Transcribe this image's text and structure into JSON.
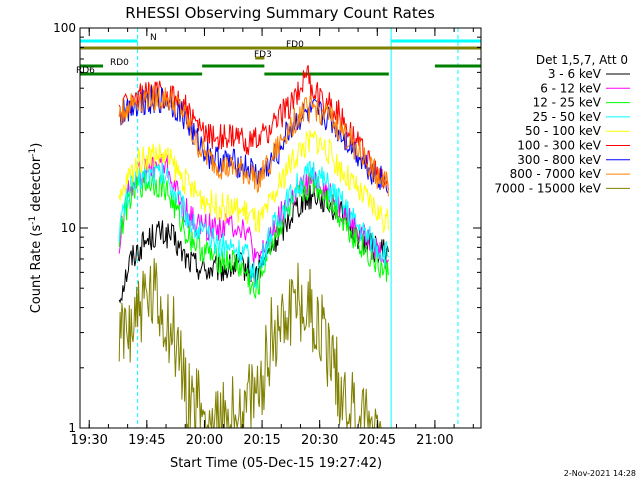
{
  "chart_data": {
    "type": "line",
    "title": "RHESSI Observing Summary Count Rates",
    "xlabel": "Start Time (05-Dec-15 19:27:42)",
    "ylabel": "Count Rate (s⁻¹ detector⁻¹)",
    "ylabel_parts": {
      "main": "Count Rate (s",
      "sup1": "-1",
      "mid": " detector",
      "sup2": "-1",
      "end": ")"
    },
    "y_scale": "log",
    "ylim": [
      1,
      100
    ],
    "y_ticks": [
      1,
      10,
      100
    ],
    "x_ticks": [
      "19:30",
      "19:45",
      "20:00",
      "20:15",
      "20:30",
      "20:45",
      "21:00"
    ],
    "xlim_hours": [
      19.46,
      21.2
    ],
    "legend_title": "Det 1,5,7, Att 0",
    "timestamp": "2-Nov-2021 14:28",
    "series": [
      {
        "name": "3 - 6 keV",
        "color": "#000000",
        "points": [
          [
            19.63,
            4.5
          ],
          [
            19.68,
            7.0
          ],
          [
            19.74,
            8.5
          ],
          [
            19.8,
            9.5
          ],
          [
            19.86,
            9.0
          ],
          [
            19.92,
            7.0
          ],
          [
            20.0,
            6.2
          ],
          [
            20.08,
            6.2
          ],
          [
            20.16,
            6.5
          ],
          [
            20.22,
            5.8
          ],
          [
            20.28,
            7.5
          ],
          [
            20.34,
            10.0
          ],
          [
            20.4,
            13.0
          ],
          [
            20.48,
            15.0
          ],
          [
            20.53,
            13.5
          ],
          [
            20.6,
            11.5
          ],
          [
            20.67,
            9.0
          ],
          [
            20.73,
            8.0
          ],
          [
            20.78,
            7.5
          ],
          [
            20.8,
            7.5
          ]
        ]
      },
      {
        "name": "6 - 12 keV",
        "color": "#ff00ff",
        "points": [
          [
            19.63,
            8.0
          ],
          [
            19.66,
            14.0
          ],
          [
            19.7,
            18.0
          ],
          [
            19.74,
            19.0
          ],
          [
            19.8,
            21.0
          ],
          [
            19.84,
            20.0
          ],
          [
            19.9,
            13.0
          ],
          [
            19.96,
            10.5
          ],
          [
            20.04,
            10.0
          ],
          [
            20.12,
            10.5
          ],
          [
            20.18,
            10.0
          ],
          [
            20.23,
            6.5
          ],
          [
            20.28,
            9.0
          ],
          [
            20.34,
            12.0
          ],
          [
            20.4,
            15.0
          ],
          [
            20.48,
            17.5
          ],
          [
            20.54,
            15.0
          ],
          [
            20.6,
            12.0
          ],
          [
            20.67,
            9.5
          ],
          [
            20.73,
            8.0
          ],
          [
            20.8,
            7.0
          ]
        ]
      },
      {
        "name": "12 - 25 keV",
        "color": "#00ff00",
        "points": [
          [
            19.63,
            9.0
          ],
          [
            19.67,
            14.0
          ],
          [
            19.72,
            16.5
          ],
          [
            19.77,
            17.0
          ],
          [
            19.83,
            16.0
          ],
          [
            19.88,
            12.0
          ],
          [
            19.92,
            9.5
          ],
          [
            19.98,
            8.0
          ],
          [
            20.05,
            7.0
          ],
          [
            20.12,
            6.8
          ],
          [
            20.18,
            6.0
          ],
          [
            20.22,
            4.5
          ],
          [
            20.28,
            8.0
          ],
          [
            20.34,
            11.0
          ],
          [
            20.4,
            14.0
          ],
          [
            20.47,
            17.0
          ],
          [
            20.53,
            14.5
          ],
          [
            20.6,
            11.0
          ],
          [
            20.67,
            8.5
          ],
          [
            20.73,
            7.0
          ],
          [
            20.78,
            6.0
          ],
          [
            20.8,
            6.0
          ]
        ]
      },
      {
        "name": "25 - 50 keV",
        "color": "#00ffff",
        "points": [
          [
            19.63,
            10.0
          ],
          [
            19.67,
            15.0
          ],
          [
            19.72,
            18.0
          ],
          [
            19.78,
            19.0
          ],
          [
            19.84,
            18.0
          ],
          [
            19.9,
            13.0
          ],
          [
            19.96,
            10.0
          ],
          [
            20.04,
            8.5
          ],
          [
            20.12,
            8.0
          ],
          [
            20.18,
            7.5
          ],
          [
            20.22,
            5.5
          ],
          [
            20.28,
            9.0
          ],
          [
            20.34,
            12.5
          ],
          [
            20.4,
            16.0
          ],
          [
            20.47,
            19.5
          ],
          [
            20.53,
            16.5
          ],
          [
            20.6,
            13.0
          ],
          [
            20.67,
            10.0
          ],
          [
            20.73,
            8.5
          ],
          [
            20.78,
            7.5
          ],
          [
            20.8,
            7.5
          ]
        ]
      },
      {
        "name": "50 - 100 keV",
        "color": "#ffff00",
        "points": [
          [
            19.63,
            13.0
          ],
          [
            19.67,
            18.0
          ],
          [
            19.72,
            22.0
          ],
          [
            19.78,
            23.5
          ],
          [
            19.84,
            22.5
          ],
          [
            19.9,
            18.0
          ],
          [
            19.96,
            15.0
          ],
          [
            20.04,
            13.0
          ],
          [
            20.12,
            12.5
          ],
          [
            20.18,
            12.0
          ],
          [
            20.24,
            10.5
          ],
          [
            20.3,
            14.0
          ],
          [
            20.36,
            20.0
          ],
          [
            20.42,
            25.0
          ],
          [
            20.48,
            28.0
          ],
          [
            20.54,
            24.0
          ],
          [
            20.6,
            19.0
          ],
          [
            20.67,
            15.0
          ],
          [
            20.73,
            13.0
          ],
          [
            20.78,
            11.0
          ],
          [
            20.8,
            10.5
          ]
        ]
      },
      {
        "name": "100 - 300 keV",
        "color": "#ff0000",
        "points": [
          [
            19.63,
            38.0
          ],
          [
            19.67,
            43.0
          ],
          [
            19.72,
            46.0
          ],
          [
            19.78,
            47.0
          ],
          [
            19.84,
            46.0
          ],
          [
            19.9,
            44.0
          ],
          [
            19.96,
            33.0
          ],
          [
            20.02,
            29.0
          ],
          [
            20.08,
            28.5
          ],
          [
            20.14,
            28.0
          ],
          [
            20.2,
            27.0
          ],
          [
            20.24,
            27.5
          ],
          [
            20.3,
            33.0
          ],
          [
            20.36,
            40.0
          ],
          [
            20.41,
            48.0
          ],
          [
            20.44,
            62.0
          ],
          [
            20.46,
            50.0
          ],
          [
            20.5,
            45.0
          ],
          [
            20.56,
            40.0
          ],
          [
            20.62,
            33.0
          ],
          [
            20.68,
            25.0
          ],
          [
            20.74,
            19.0
          ],
          [
            20.78,
            17.0
          ],
          [
            20.8,
            17.0
          ]
        ]
      },
      {
        "name": "300 - 800 keV",
        "color": "#0000ff",
        "points": [
          [
            19.63,
            35.0
          ],
          [
            19.67,
            40.0
          ],
          [
            19.72,
            43.0
          ],
          [
            19.78,
            44.0
          ],
          [
            19.84,
            43.0
          ],
          [
            19.9,
            38.0
          ],
          [
            19.96,
            28.0
          ],
          [
            20.02,
            23.0
          ],
          [
            20.08,
            21.5
          ],
          [
            20.14,
            21.0
          ],
          [
            20.2,
            19.5
          ],
          [
            20.24,
            18.0
          ],
          [
            20.3,
            22.0
          ],
          [
            20.36,
            30.0
          ],
          [
            20.42,
            36.0
          ],
          [
            20.48,
            38.0
          ],
          [
            20.54,
            35.0
          ],
          [
            20.6,
            29.0
          ],
          [
            20.67,
            23.0
          ],
          [
            20.73,
            19.0
          ],
          [
            20.78,
            17.0
          ],
          [
            20.8,
            17.0
          ]
        ]
      },
      {
        "name": "800 - 7000 keV",
        "color": "#ff8000",
        "points": [
          [
            19.63,
            36.0
          ],
          [
            19.67,
            41.0
          ],
          [
            19.72,
            44.0
          ],
          [
            19.78,
            45.0
          ],
          [
            19.84,
            44.0
          ],
          [
            19.9,
            39.0
          ],
          [
            19.96,
            27.0
          ],
          [
            20.02,
            22.0
          ],
          [
            20.08,
            20.0
          ],
          [
            20.14,
            19.5
          ],
          [
            20.2,
            18.5
          ],
          [
            20.24,
            17.5
          ],
          [
            20.3,
            23.0
          ],
          [
            20.36,
            31.0
          ],
          [
            20.42,
            38.0
          ],
          [
            20.48,
            40.0
          ],
          [
            20.54,
            36.0
          ],
          [
            20.6,
            30.0
          ],
          [
            20.67,
            24.0
          ],
          [
            20.73,
            19.5
          ],
          [
            20.78,
            16.5
          ],
          [
            20.8,
            16.5
          ]
        ]
      },
      {
        "name": "7000 - 15000 keV",
        "color": "#808000",
        "points": [
          [
            19.63,
            2.5
          ],
          [
            19.68,
            3.5
          ],
          [
            19.74,
            4.2
          ],
          [
            19.78,
            4.3
          ],
          [
            19.84,
            3.4
          ],
          [
            19.88,
            2.5
          ],
          [
            19.92,
            1.6
          ],
          [
            19.98,
            1.2
          ],
          [
            20.04,
            1.0
          ],
          [
            20.12,
            1.1
          ],
          [
            20.18,
            1.2
          ],
          [
            20.24,
            1.5
          ],
          [
            20.28,
            2.6
          ],
          [
            20.33,
            3.5
          ],
          [
            20.38,
            4.3
          ],
          [
            20.42,
            4.4
          ],
          [
            20.48,
            3.6
          ],
          [
            20.54,
            2.4
          ],
          [
            20.6,
            1.5
          ],
          [
            20.66,
            1.1
          ],
          [
            20.72,
            1.0
          ],
          [
            20.78,
            1.0
          ]
        ]
      }
    ],
    "annotation_bars": [
      {
        "label": "N",
        "color": "#00ffff",
        "level": 0,
        "segments": [
          [
            19.46,
            19.71
          ],
          [
            20.81,
            21.2
          ]
        ]
      },
      {
        "label": "FD0",
        "color": "#808000",
        "level": 1,
        "segments": [
          [
            19.46,
            21.2
          ]
        ]
      },
      {
        "label": "FD3",
        "color": "#808000",
        "level": 2,
        "segments": [
          [
            20.22,
            20.26
          ]
        ]
      },
      {
        "label": "RD0",
        "color": "#008000",
        "level": 3,
        "segments": [
          [
            19.46,
            19.56
          ],
          [
            19.99,
            20.26
          ],
          [
            21.0,
            21.2
          ]
        ]
      },
      {
        "label": "RD6",
        "color": "#008000",
        "level": 4,
        "segments": [
          [
            19.46,
            19.99
          ],
          [
            20.26,
            20.8
          ]
        ]
      }
    ],
    "vertical_markers": [
      {
        "hours": 19.46,
        "color": "#00ffff",
        "style": "solid"
      },
      {
        "hours": 19.71,
        "color": "#00ffff",
        "style": "dashed"
      },
      {
        "hours": 20.81,
        "color": "#00ffff",
        "style": "solid"
      },
      {
        "hours": 21.1,
        "color": "#00ffff",
        "style": "dashed"
      }
    ]
  }
}
